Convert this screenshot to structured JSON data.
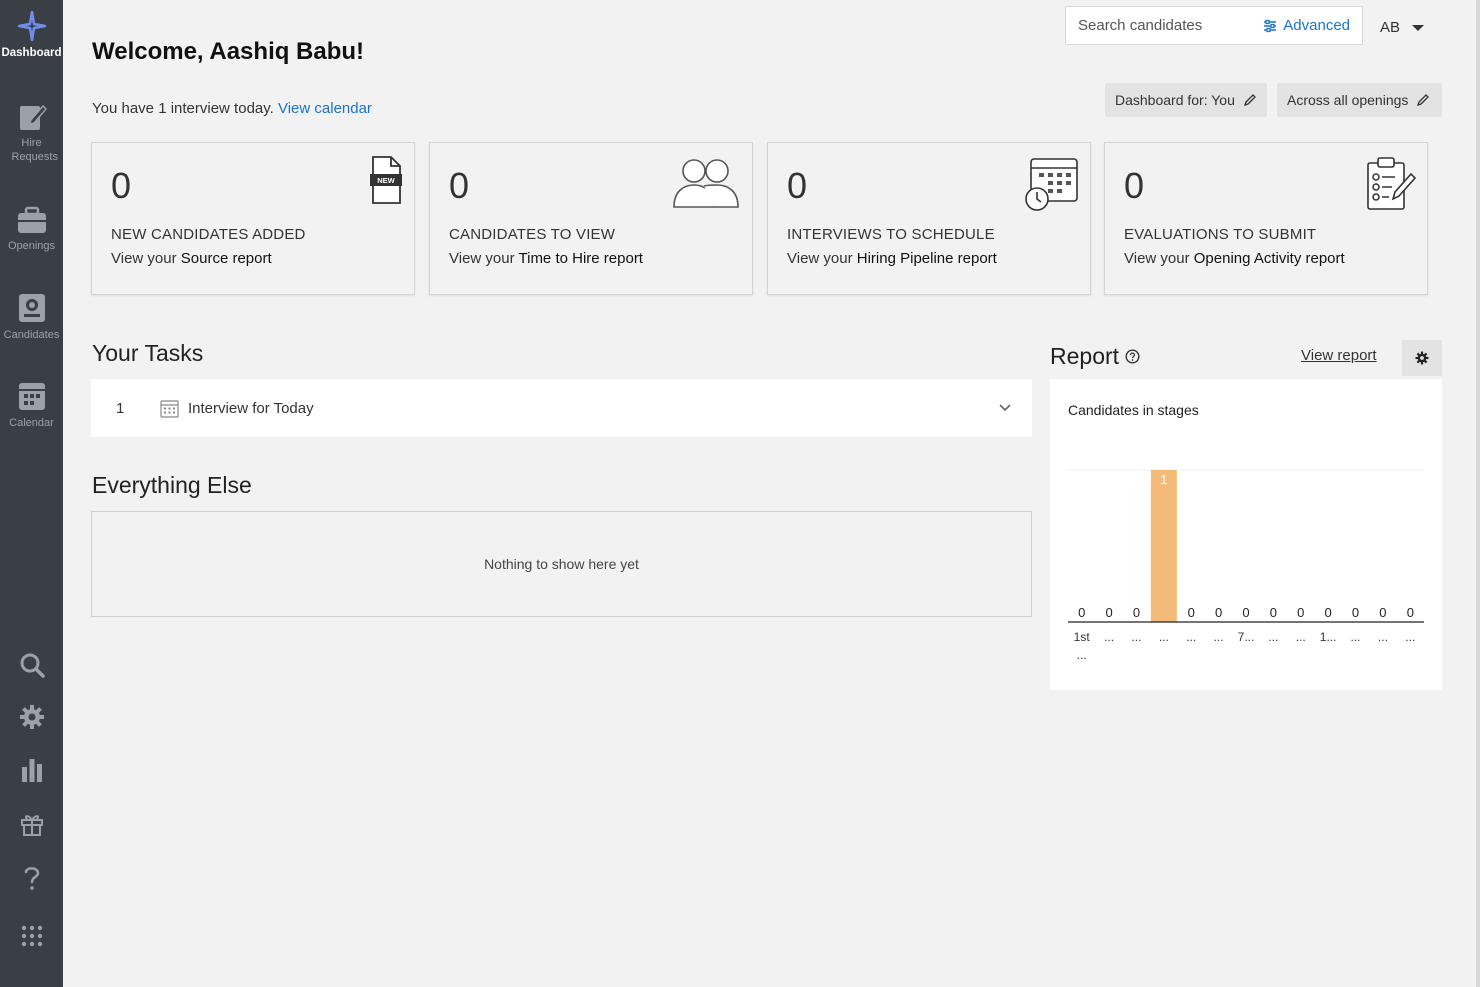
{
  "sidebar": {
    "items": [
      {
        "label": "Dashboard",
        "icon": "dashboard-sparkle-icon"
      },
      {
        "label": "Hire Requests",
        "icon": "edit-document-icon"
      },
      {
        "label": "Openings",
        "icon": "briefcase-icon"
      },
      {
        "label": "Candidates",
        "icon": "candidate-card-icon"
      },
      {
        "label": "Calendar",
        "icon": "calendar-icon"
      }
    ],
    "bottom_icons": [
      "search-icon",
      "gear-icon",
      "bar-chart-icon",
      "gift-icon",
      "help-icon",
      "apps-grid-icon"
    ]
  },
  "header": {
    "welcome": "Welcome, Aashiq Babu!",
    "subtitle_prefix": "You have ",
    "interview_count": "1",
    "subtitle_suffix": " interview today. ",
    "view_calendar": "View calendar",
    "search_placeholder": "Search candidates",
    "advanced_label": "Advanced",
    "user_initials": "AB",
    "dashboard_for": "Dashboard for: You",
    "across_openings": "Across all openings"
  },
  "cards": [
    {
      "value": "0",
      "label": "NEW CANDIDATES ADDED",
      "link_prefix": "View your ",
      "link_report": "Source report",
      "icon": "new-document-icon"
    },
    {
      "value": "0",
      "label": "CANDIDATES TO VIEW",
      "link_prefix": "View your ",
      "link_report": "Time to Hire report",
      "icon": "people-icon"
    },
    {
      "value": "0",
      "label": "INTERVIEWS TO SCHEDULE",
      "link_prefix": "View your ",
      "link_report": "Hiring Pipeline report",
      "icon": "calendar-clock-icon"
    },
    {
      "value": "0",
      "label": "EVALUATIONS TO SUBMIT",
      "link_prefix": "View your ",
      "link_report": "Opening Activity report",
      "icon": "clipboard-checklist-icon"
    }
  ],
  "tasks": {
    "title": "Your Tasks",
    "items": [
      {
        "count": "1",
        "label": "Interview for Today"
      }
    ]
  },
  "everything_else": {
    "title": "Everything Else",
    "empty_text": "Nothing to show here yet"
  },
  "report": {
    "title": "Report",
    "view_report": "View report"
  },
  "chart_data": {
    "type": "bar",
    "title": "Candidates in stages",
    "categories": [
      "1st ...",
      "...",
      "...",
      "...",
      "...",
      "...",
      "7...",
      "...",
      "...",
      "1...",
      "...",
      "...",
      "..."
    ],
    "values": [
      0,
      0,
      0,
      1,
      0,
      0,
      0,
      0,
      0,
      0,
      0,
      0,
      0
    ],
    "value_labels": [
      "0",
      "0",
      "0",
      "1",
      "0",
      "0",
      "0",
      "0",
      "0",
      "0",
      "0",
      "0",
      "0"
    ],
    "ylim": [
      0,
      1
    ],
    "bar_color": "#f4bb78",
    "xlabel": "",
    "ylabel": ""
  }
}
